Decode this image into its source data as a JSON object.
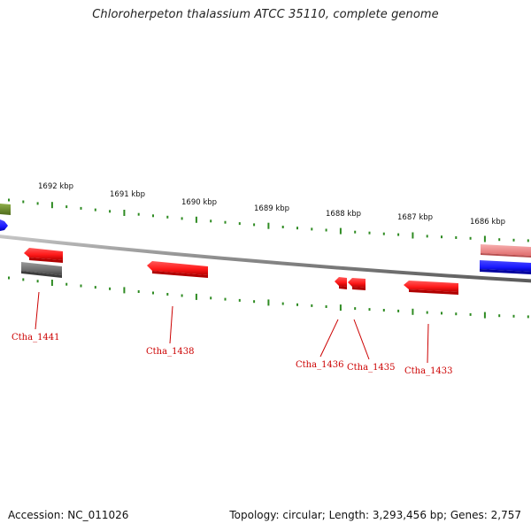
{
  "title": "Chloroherpeton thalassium ATCC 35110, complete genome",
  "footer": {
    "accession": "Accession: NC_011026",
    "topology": "Topology: circular; Length: 3,293,456 bp; Genes: 2,757"
  },
  "colors": {
    "background": "#ffffff",
    "tick": "#2e8b22",
    "backbone": "#8c8c8c",
    "gene_red": "#ff1a1a",
    "gene_pink": "#f08a8a",
    "gene_gray": "#6e6e6e",
    "gene_blue": "#1a1aff",
    "gene_olive": "#6b8e23",
    "label": "#cc0000"
  },
  "scale_labels": [
    "1692 kbp",
    "1691 kbp",
    "1690 kbp",
    "1689 kbp",
    "1688 kbp",
    "1687 kbp",
    "1686 kbp"
  ],
  "gene_labels": [
    "Ctha_1441",
    "Ctha_1438",
    "Ctha_1436",
    "Ctha_1435",
    "Ctha_1433"
  ]
}
